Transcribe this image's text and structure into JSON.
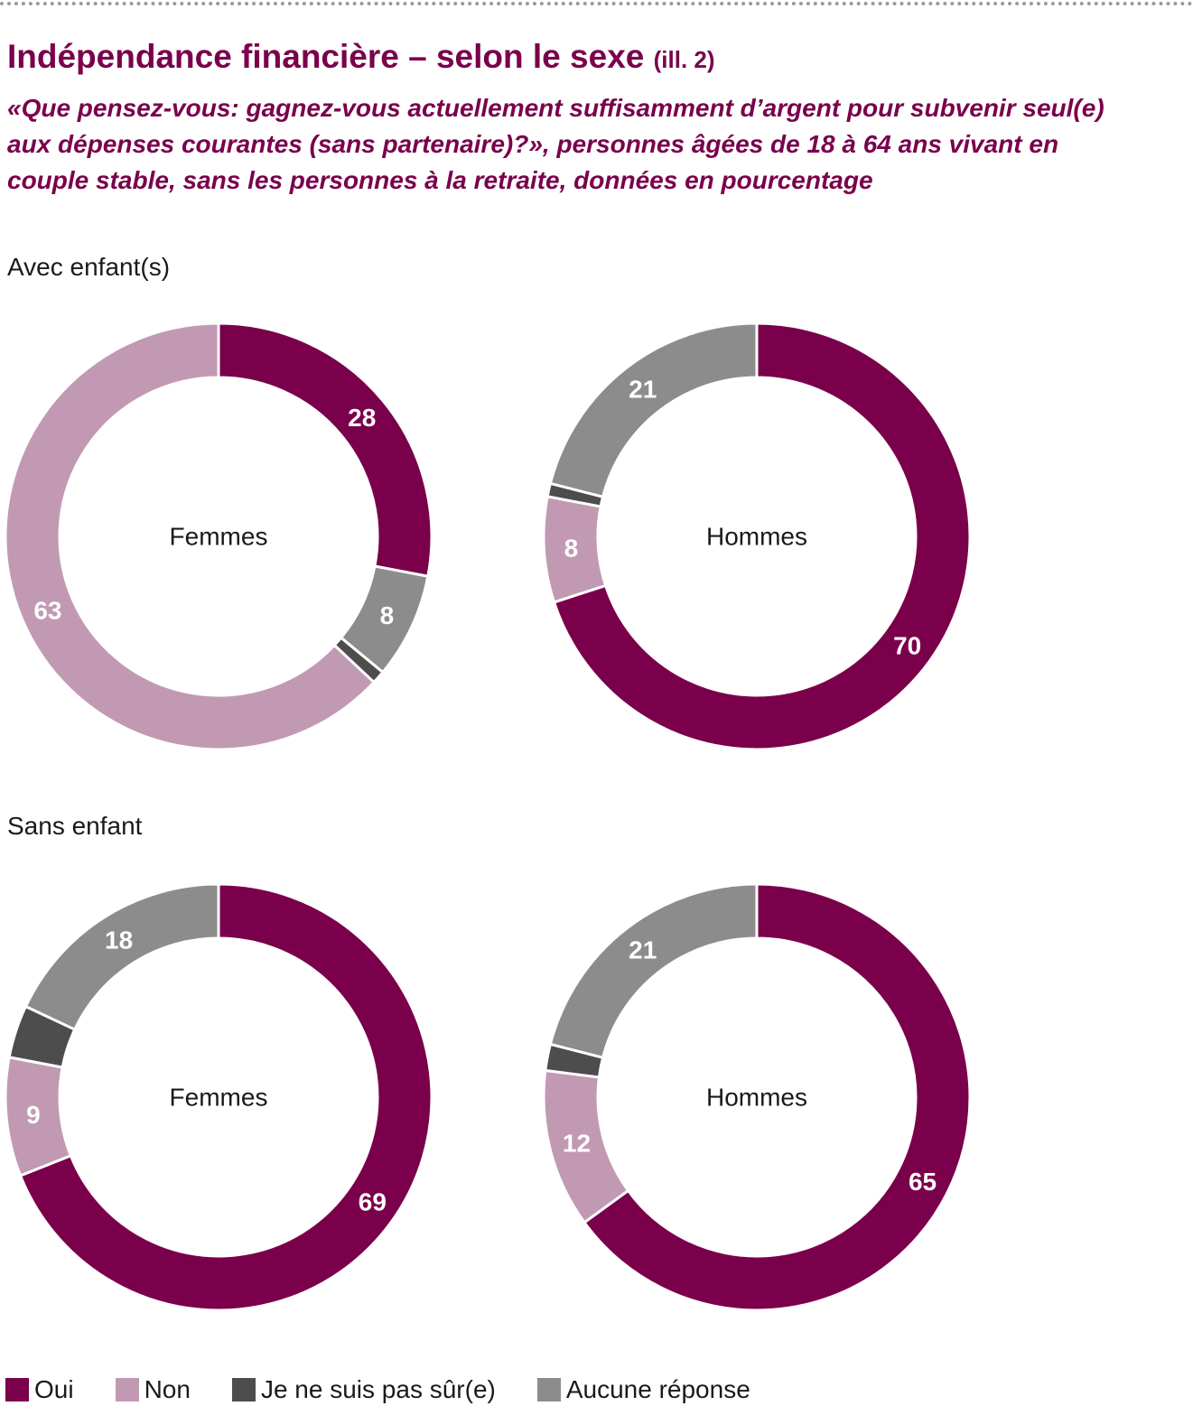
{
  "title": "Indépendance financière – selon le sexe",
  "title_suffix": "(ill. 2)",
  "subtitle": "«Que pensez-vous: gagnez-vous actuellement suffisamment d’argent pour subvenir seul(e) aux dépenses courantes (sans partenaire)?», personnes âgées de 18 à 64 ans vivant en couple stable, sans les personnes à la retraite, données en pourcentage",
  "sections": [
    "Avec enfant(s)",
    "Sans enfant"
  ],
  "colors": {
    "Oui": "#7a004b",
    "Non": "#c299b3",
    "Je ne suis pas sûr(e)": "#4d4d4d",
    "Aucune réponse": "#8c8c8c"
  },
  "legend": [
    "Oui",
    "Non",
    "Je ne suis pas sûr(e)",
    "Aucune réponse"
  ],
  "chart_data": [
    {
      "type": "pie",
      "section": "Avec enfant(s)",
      "center_label": "Femmes",
      "categories": [
        "Oui",
        "Aucune réponse",
        "Je ne suis pas sûr(e)",
        "Non"
      ],
      "values": [
        28,
        8,
        1,
        63
      ],
      "labels": [
        "28",
        "8",
        "",
        "63"
      ]
    },
    {
      "type": "pie",
      "section": "Avec enfant(s)",
      "center_label": "Hommes",
      "categories": [
        "Oui",
        "Non",
        "Je ne suis pas sûr(e)",
        "Aucune réponse"
      ],
      "values": [
        70,
        8,
        1,
        21
      ],
      "labels": [
        "70",
        "8",
        "",
        "21"
      ]
    },
    {
      "type": "pie",
      "section": "Sans enfant",
      "center_label": "Femmes",
      "categories": [
        "Oui",
        "Non",
        "Je ne suis pas sûr(e)",
        "Aucune réponse"
      ],
      "values": [
        69,
        9,
        4,
        18
      ],
      "labels": [
        "69",
        "9",
        "",
        "18"
      ]
    },
    {
      "type": "pie",
      "section": "Sans enfant",
      "center_label": "Hommes",
      "categories": [
        "Oui",
        "Non",
        "Je ne suis pas sûr(e)",
        "Aucune réponse"
      ],
      "values": [
        65,
        12,
        2,
        21
      ],
      "labels": [
        "65",
        "12",
        "",
        "21"
      ]
    }
  ]
}
